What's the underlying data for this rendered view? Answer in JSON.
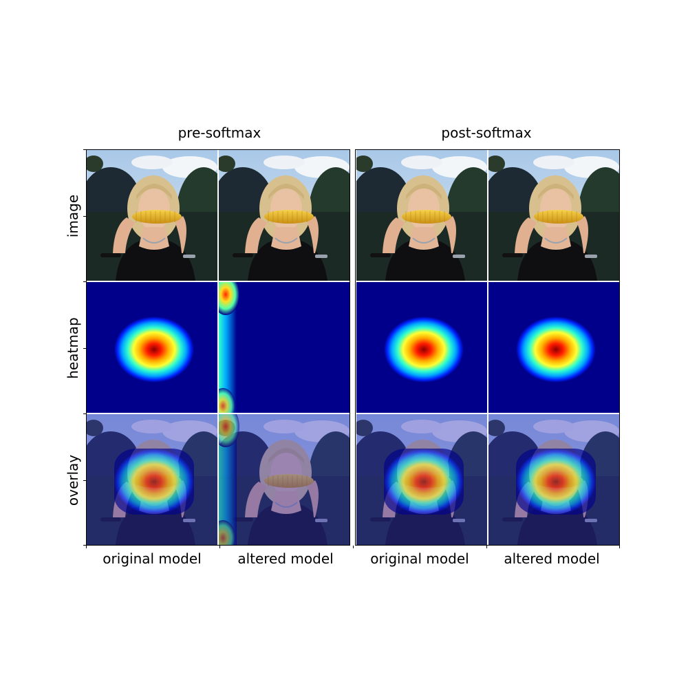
{
  "groups": [
    "pre-softmax",
    "post-softmax"
  ],
  "row_labels": [
    "image",
    "heatmap",
    "overlay"
  ],
  "column_labels": [
    "original model",
    "altered model",
    "original model",
    "altered model"
  ],
  "panels": {
    "image": {
      "icon": "woman-eating-corn-photo"
    },
    "heatmap": {
      "colormap": "jet",
      "background": "#00008b"
    },
    "overlay": {
      "tint": "#6a6ad8"
    }
  }
}
